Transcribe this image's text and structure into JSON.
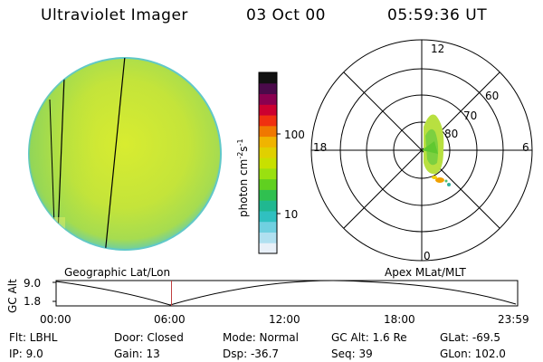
{
  "header": {
    "instrument": "Ultraviolet Imager",
    "date": "03 Oct 00",
    "time": "05:59:36 UT"
  },
  "colorbar": {
    "label": "photon cm",
    "label_sup1": "-2",
    "label_s": "s",
    "label_sup2": "-1",
    "tick_high": "100",
    "tick_low": "10",
    "colors": [
      "#111111",
      "#4a0a4a",
      "#8a0050",
      "#cc0030",
      "#f03010",
      "#f07800",
      "#f0b400",
      "#e0d000",
      "#c8e000",
      "#9ae010",
      "#60d020",
      "#30c050",
      "#20b890",
      "#30c0c0",
      "#70d0e0",
      "#b0e0f0",
      "#e8f0f8"
    ]
  },
  "globe_labels": {
    "geographic": "Geographic Lat/Lon"
  },
  "polar": {
    "label": "Apex MLat/MLT",
    "mlt_top": "12",
    "mlt_left": "18",
    "mlt_right": "6",
    "mlt_bottom": "0",
    "lat_60": "60",
    "lat_70": "70",
    "lat_80": "80"
  },
  "altitude_plot": {
    "ylabel": "GC Alt",
    "y_high": "9.0",
    "y_low": "1.8",
    "x_ticks": [
      "00:00",
      "06:00",
      "12:00",
      "18:00",
      "23:59"
    ],
    "marker_time_fraction": 0.25,
    "marker_color": "#c04040"
  },
  "info": {
    "flt": "Flt: LBHL",
    "door": "Door: Closed",
    "mode": "Mode: Normal",
    "gcalt": "GC Alt: 1.6 Re",
    "glat": "GLat: -69.5",
    "ip": "IP:  9.0",
    "gain": "Gain: 13",
    "dsp": "Dsp:  -36.7",
    "seq": "Seq: 39",
    "glon": "GLon: 102.0"
  }
}
